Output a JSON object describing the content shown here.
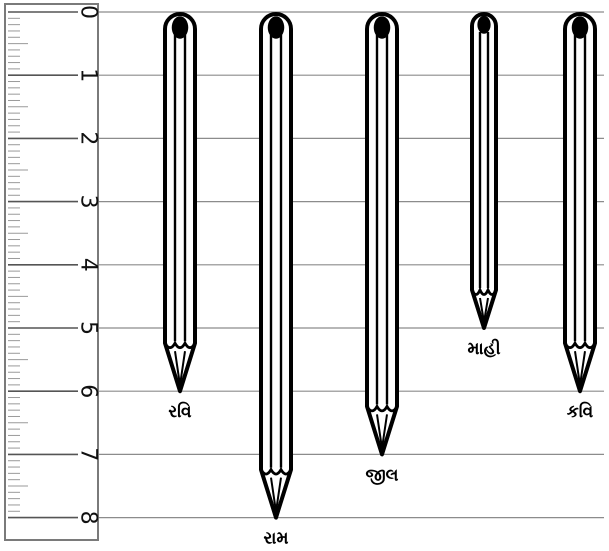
{
  "ruler": {
    "unit_labels": [
      "0",
      "1",
      "2",
      "3",
      "4",
      "5",
      "6",
      "7",
      "8"
    ]
  },
  "pencils": [
    {
      "name": "રવિ",
      "length": 6
    },
    {
      "name": "રામ",
      "length": 8
    },
    {
      "name": "જીલ",
      "length": 7
    },
    {
      "name": "માહી",
      "length": 5
    },
    {
      "name": "કવિ",
      "length": 6
    }
  ],
  "colors": {
    "line": "#000000",
    "gridline": "#8c8c8c",
    "ruler_fill": "#ffffff",
    "ruler_border": "#7a7a7a",
    "ruler_tick": "#9a9a9a",
    "pencil_fill": "#ffffff"
  }
}
